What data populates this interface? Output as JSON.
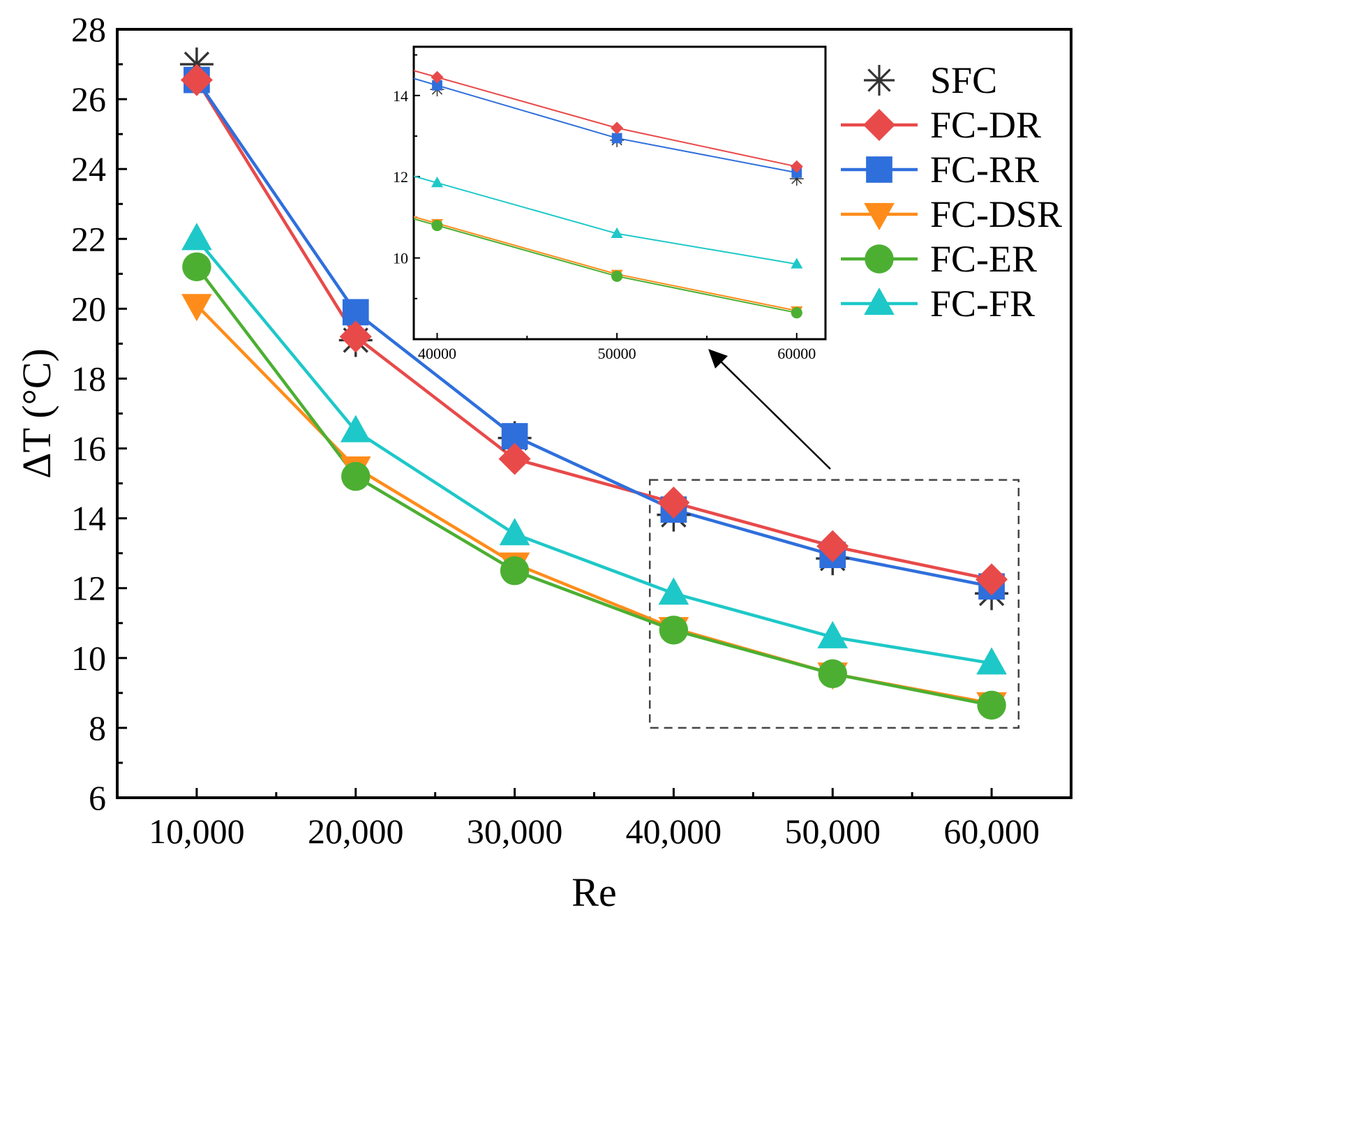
{
  "chart_data": [
    {
      "type": "line",
      "title": "",
      "xlabel": "Re",
      "ylabel": "ΔT (°C)",
      "x": [
        10000,
        20000,
        30000,
        40000,
        50000,
        60000
      ],
      "x_tick_labels": [
        "10,000",
        "20,000",
        "30,000",
        "40,000",
        "50,000",
        "60,000"
      ],
      "xlim": [
        5000,
        65000
      ],
      "ylim": [
        6,
        28
      ],
      "y_ticks": [
        6,
        8,
        10,
        12,
        14,
        16,
        18,
        20,
        22,
        24,
        26,
        28
      ],
      "grid": false,
      "legend_position": "top-right",
      "series": [
        {
          "name": "SFC",
          "color": "#333333",
          "marker": "asterisk",
          "line": false,
          "values": [
            27.0,
            19.1,
            16.3,
            14.1,
            12.85,
            11.85
          ]
        },
        {
          "name": "FC-DR",
          "color": "#e84a4a",
          "marker": "diamond",
          "line": true,
          "values": [
            26.55,
            19.2,
            15.7,
            14.45,
            13.2,
            12.25
          ]
        },
        {
          "name": "FC-RR",
          "color": "#2f6fdc",
          "marker": "square",
          "line": true,
          "values": [
            26.55,
            19.9,
            16.35,
            14.25,
            12.95,
            12.05
          ]
        },
        {
          "name": "FC-DSR",
          "color": "#ff8c1a",
          "marker": "triangle-down",
          "line": true,
          "values": [
            20.1,
            15.45,
            12.7,
            10.85,
            9.55,
            8.7
          ]
        },
        {
          "name": "FC-ER",
          "color": "#4caf32",
          "marker": "circle",
          "line": true,
          "values": [
            21.2,
            15.2,
            12.5,
            10.8,
            9.55,
            8.65
          ]
        },
        {
          "name": "FC-FR",
          "color": "#1ec8c8",
          "marker": "triangle-up",
          "line": true,
          "values": [
            22.0,
            16.5,
            13.55,
            11.85,
            10.6,
            9.85
          ]
        }
      ],
      "annotations": [
        {
          "type": "dashed-box",
          "x_range": [
            38500,
            61700
          ],
          "y_range": [
            8.0,
            15.1
          ]
        },
        {
          "type": "arrow",
          "from": "dashed box",
          "to": "inset"
        }
      ]
    },
    {
      "type": "line",
      "role": "inset",
      "title": "",
      "xlabel": "",
      "ylabel": "",
      "x": [
        40000,
        50000,
        60000
      ],
      "x_tick_labels": [
        "40000",
        "50000",
        "60000"
      ],
      "y_tick_labels": [
        "10",
        "12",
        "14"
      ],
      "xlim": [
        38700,
        61600
      ],
      "ylim": [
        8.0,
        15.2
      ],
      "grid": false,
      "series": [
        {
          "name": "SFC",
          "color": "#333333",
          "marker": "asterisk",
          "line": false,
          "values": [
            14.15,
            12.9,
            11.95
          ]
        },
        {
          "name": "FC-DR",
          "color": "#e84a4a",
          "marker": "diamond",
          "line": true,
          "values": [
            14.45,
            13.2,
            12.25
          ]
        },
        {
          "name": "FC-RR",
          "color": "#2f6fdc",
          "marker": "square",
          "line": true,
          "values": [
            14.25,
            12.95,
            12.1
          ]
        },
        {
          "name": "FC-DSR",
          "color": "#ff8c1a",
          "marker": "triangle-down",
          "line": true,
          "values": [
            10.85,
            9.6,
            8.7
          ]
        },
        {
          "name": "FC-ER",
          "color": "#4caf32",
          "marker": "circle",
          "line": true,
          "values": [
            10.8,
            9.55,
            8.65
          ]
        },
        {
          "name": "FC-FR",
          "color": "#1ec8c8",
          "marker": "triangle-up",
          "line": true,
          "values": [
            11.85,
            10.6,
            9.85
          ]
        }
      ]
    }
  ]
}
